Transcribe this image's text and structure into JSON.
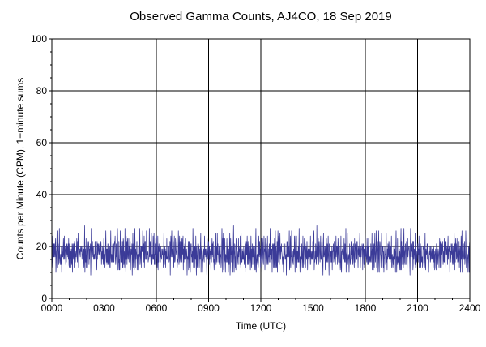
{
  "chart_data": {
    "type": "line",
    "title": "Observed Gamma Counts, AJ4CO, 18 Sep 2019",
    "xlabel": "Time (UTC)",
    "ylabel": "Counts per Minute (CPM), 1−minute sums",
    "x_tick_labels": [
      "0000",
      "0300",
      "0600",
      "0900",
      "1200",
      "1500",
      "1800",
      "2100",
      "2400"
    ],
    "y_tick_labels": [
      "0",
      "20",
      "40",
      "60",
      "80",
      "100"
    ],
    "xlim_minutes": [
      0,
      1440
    ],
    "ylim": [
      0,
      100
    ],
    "y_major_step": 20,
    "y_minor_step": 5,
    "grid": true,
    "legend": "none",
    "series": [
      {
        "color": "#3b3b98",
        "x_unit": "minutes since 0000 UTC",
        "sample_interval_minutes": 1,
        "mean_cpm": 17,
        "typical_range_cpm": [
          8,
          27
        ],
        "max_cpm": 32,
        "min_cpm": 6,
        "values": [
          17,
          15,
          19,
          23,
          14,
          18,
          16,
          20,
          12,
          17,
          21,
          15,
          18,
          24,
          13,
          16,
          19,
          17,
          22,
          14,
          15,
          18,
          20,
          16,
          13,
          17,
          25,
          19,
          14,
          16,
          18,
          21,
          15,
          17,
          12,
          19,
          23,
          16,
          14,
          18,
          20,
          17,
          15,
          22,
          13,
          16,
          19,
          18,
          14,
          21,
          17,
          16,
          24,
          15,
          18,
          13,
          20,
          17,
          19,
          14,
          16,
          22,
          18,
          15,
          17,
          21,
          12,
          19,
          16,
          18,
          23,
          14,
          17,
          20,
          15,
          16,
          19,
          13,
          18,
          22,
          17,
          15,
          20,
          16,
          14,
          18,
          25,
          17,
          13,
          19,
          16,
          21,
          15,
          18,
          14,
          17,
          20,
          16,
          12,
          19
        ]
      }
    ]
  }
}
